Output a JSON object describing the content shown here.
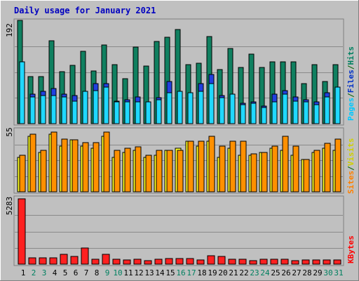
{
  "chart_data": [
    {
      "type": "bar",
      "title": "Daily usage for January 2021",
      "ymax_label": "192",
      "ymax": 192,
      "legend": [
        {
          "text": "Pages",
          "color": "#00c8ff"
        },
        {
          "text": "/",
          "color": "#006000"
        },
        {
          "text": "Files",
          "color": "#0030c8"
        },
        {
          "text": "/",
          "color": "#006000"
        },
        {
          "text": "Hits",
          "color": "#008060"
        }
      ],
      "categories": [
        "1",
        "2",
        "3",
        "4",
        "5",
        "6",
        "7",
        "8",
        "9",
        "10",
        "11",
        "12",
        "13",
        "14",
        "15",
        "16",
        "17",
        "18",
        "19",
        "20",
        "21",
        "22",
        "23",
        "24",
        "25",
        "26",
        "27",
        "28",
        "29",
        "30",
        "31"
      ],
      "weekend_days": [
        2,
        3,
        9,
        10,
        16,
        17,
        23,
        24,
        30,
        31
      ],
      "series": [
        {
          "name": "Hits",
          "color": "#108060",
          "values": [
            192,
            88,
            88,
            154,
            96,
            108,
            135,
            98,
            146,
            110,
            84,
            143,
            107,
            153,
            160,
            175,
            110,
            112,
            162,
            100,
            140,
            104,
            129,
            104,
            115,
            115,
            115,
            75,
            110,
            78,
            110
          ]
        },
        {
          "name": "Files",
          "color": "#2040e0",
          "values": [
            115,
            55,
            60,
            65,
            55,
            52,
            48,
            75,
            75,
            42,
            45,
            50,
            40,
            48,
            78,
            52,
            58,
            75,
            92,
            52,
            52,
            38,
            40,
            32,
            55,
            62,
            50,
            45,
            40,
            58,
            45
          ]
        },
        {
          "name": "Pages",
          "color": "#20d8ff",
          "values": [
            115,
            50,
            52,
            52,
            50,
            42,
            60,
            62,
            68,
            40,
            40,
            40,
            40,
            45,
            58,
            60,
            58,
            60,
            75,
            48,
            55,
            35,
            38,
            30,
            40,
            55,
            42,
            40,
            35,
            50,
            68
          ]
        }
      ]
    },
    {
      "type": "bar",
      "ymax_label": "55",
      "ymax": 55,
      "legend": [
        {
          "text": "Sites",
          "color": "#ff8000"
        },
        {
          "text": "/",
          "color": "#006000"
        },
        {
          "text": "Visits",
          "color": "#e0e000"
        }
      ],
      "series": [
        {
          "name": "Visits",
          "color": "#ffff20",
          "values": [
            30,
            48,
            34,
            50,
            40,
            45,
            40,
            38,
            48,
            30,
            34,
            36,
            30,
            32,
            36,
            38,
            44,
            40,
            44,
            30,
            38,
            32,
            32,
            34,
            38,
            36,
            32,
            28,
            34,
            38,
            36
          ]
        },
        {
          "name": "Sites",
          "color": "#ff9000",
          "values": [
            32,
            50,
            36,
            52,
            46,
            45,
            43,
            43,
            52,
            36,
            38,
            39,
            32,
            36,
            36,
            36,
            44,
            44,
            48,
            40,
            44,
            44,
            33,
            34,
            40,
            48,
            40,
            28,
            36,
            42,
            46
          ]
        }
      ]
    },
    {
      "type": "bar",
      "ymax_label": "5283",
      "ymax": 5283,
      "legend": [
        {
          "text": "KBytes",
          "color": "#ff0000"
        }
      ],
      "series": [
        {
          "name": "KBytes",
          "color": "#ff2020",
          "values": [
            5283,
            520,
            500,
            500,
            780,
            620,
            1320,
            380,
            780,
            390,
            330,
            380,
            310,
            400,
            440,
            480,
            480,
            360,
            660,
            640,
            390,
            380,
            260,
            370,
            380,
            380,
            300,
            330,
            340,
            340,
            340
          ]
        }
      ]
    }
  ]
}
